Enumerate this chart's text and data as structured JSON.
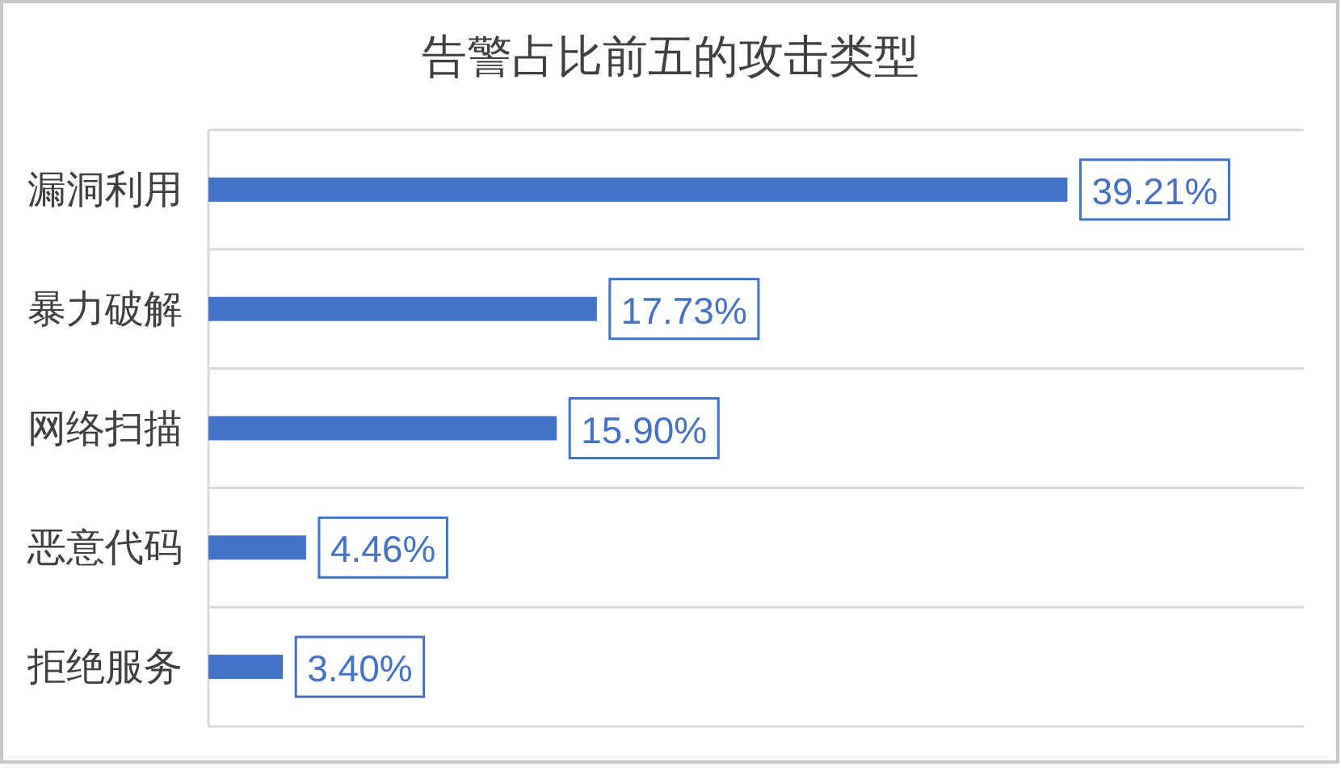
{
  "chart_data": {
    "type": "bar",
    "orientation": "horizontal",
    "title": "告警占比前五的攻击类型",
    "categories": [
      "漏洞利用",
      "暴力破解",
      "网络扫描",
      "恶意代码",
      "拒绝服务"
    ],
    "values": [
      39.21,
      17.73,
      15.9,
      4.46,
      3.4
    ],
    "color": "#4472c4",
    "value_labels": [
      "39.21%",
      "17.73%",
      "15.90%",
      "4.46%",
      "3.40%"
    ],
    "grid": "y"
  }
}
